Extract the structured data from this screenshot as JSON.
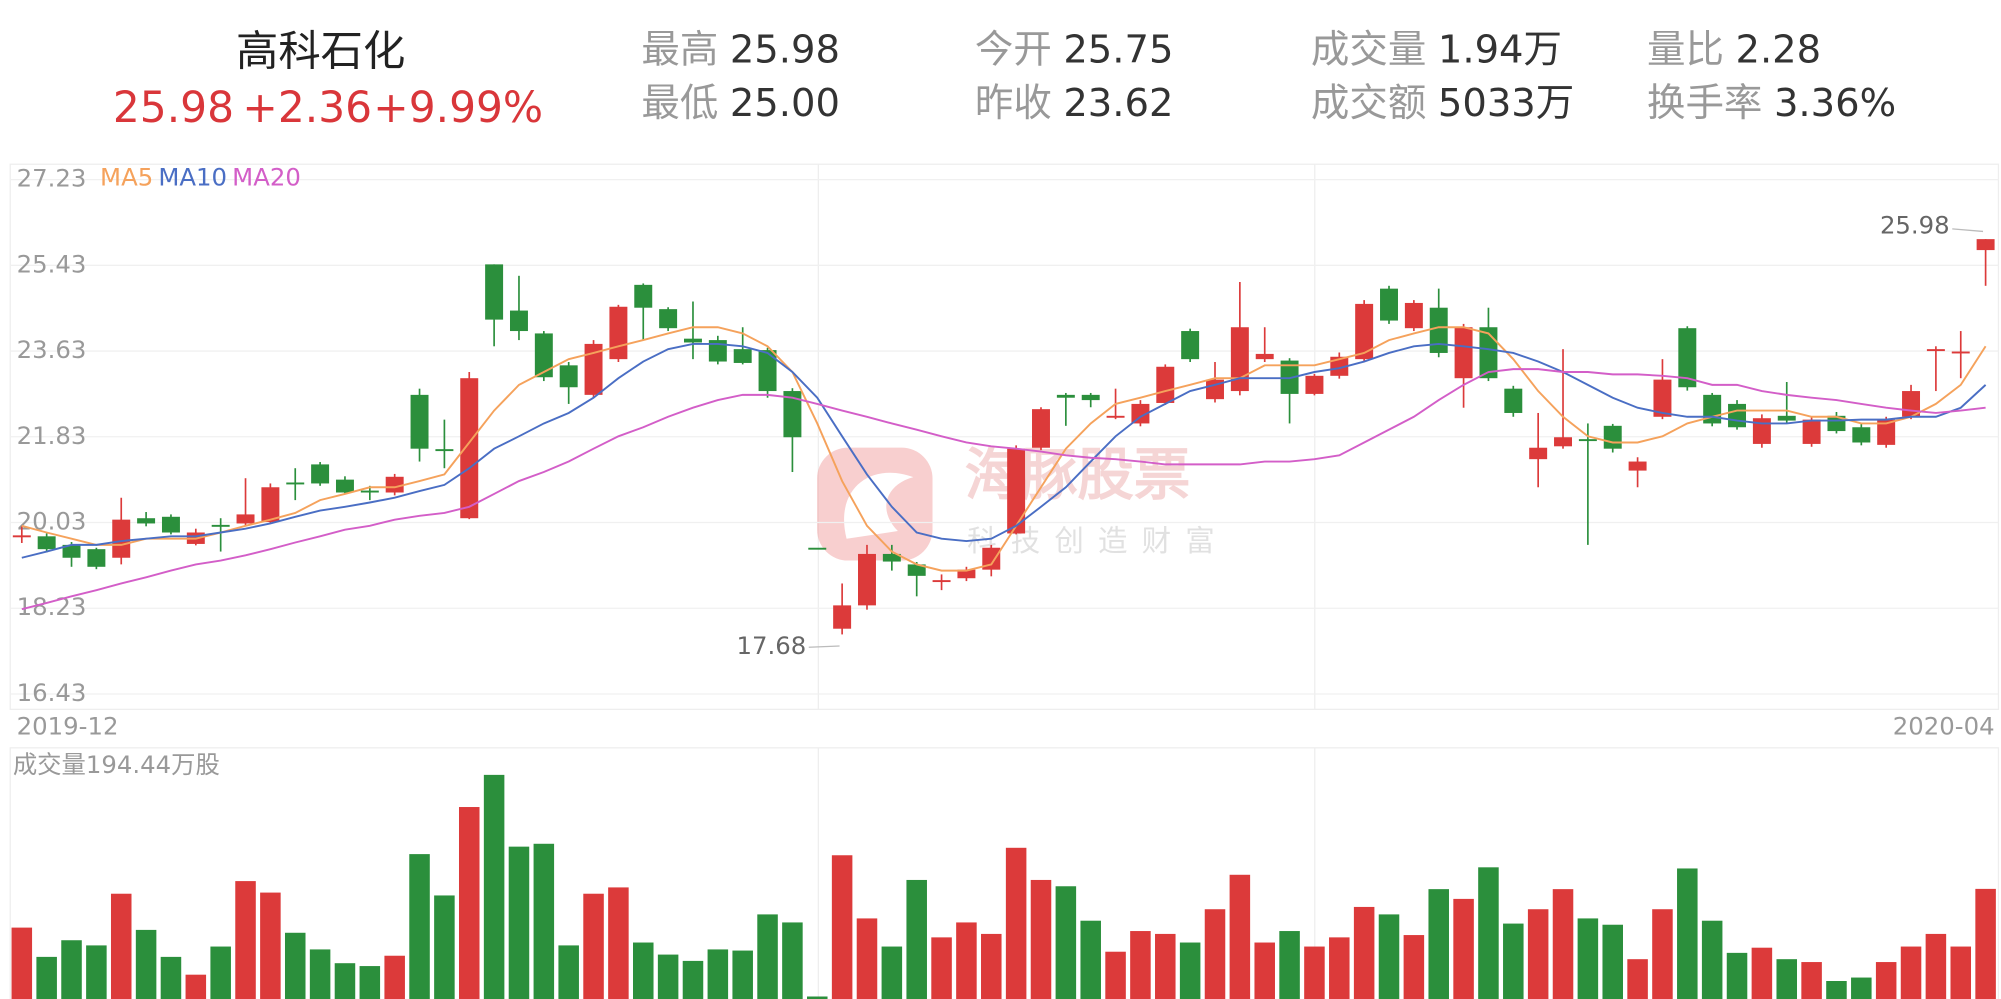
{
  "header": {
    "name": "高科石化",
    "price": "25.98",
    "change": "+2.36",
    "change_pct": "+9.99%",
    "stats": [
      {
        "label": "最高",
        "value": "25.98"
      },
      {
        "label": "今开",
        "value": "25.75"
      },
      {
        "label": "成交量",
        "value": "1.94万"
      },
      {
        "label": "量比",
        "value": "2.28"
      },
      {
        "label": "最低",
        "value": "25.00"
      },
      {
        "label": "昨收",
        "value": "23.62"
      },
      {
        "label": "成交额",
        "value": "5033万"
      },
      {
        "label": "换手率",
        "value": "3.36%"
      }
    ]
  },
  "chart_data": [
    {
      "type": "candlestick",
      "categories": [
        "2019-12",
        null,
        null,
        null,
        null,
        null,
        null,
        null,
        null,
        null,
        null,
        null,
        null,
        null,
        null,
        null,
        null,
        null,
        null,
        null,
        null,
        null,
        null,
        null,
        null,
        null,
        null,
        null,
        null,
        null,
        null,
        null,
        null,
        null,
        null,
        null,
        null,
        null,
        null,
        null,
        null,
        null,
        null,
        null,
        null,
        null,
        null,
        null,
        null,
        null,
        null,
        null,
        null,
        null,
        null,
        null,
        null,
        null,
        null,
        null,
        null,
        null,
        null,
        null,
        null,
        null,
        null,
        null,
        null,
        null,
        null,
        null,
        null,
        null,
        null,
        null,
        null,
        null,
        null,
        "2020-04"
      ],
      "open": [
        19.72,
        19.74,
        19.56,
        19.47,
        19.29,
        20.12,
        20.15,
        19.58,
        19.98,
        20.01,
        20.04,
        20.87,
        21.25,
        20.93,
        20.7,
        20.66,
        22.71,
        21.57,
        20.12,
        25.45,
        24.48,
        24.0,
        23.33,
        22.71,
        23.46,
        25.02,
        24.51,
        23.89,
        23.86,
        23.67,
        23.65,
        22.79,
        19.5,
        17.8,
        18.29,
        19.37,
        19.15,
        18.79,
        18.86,
        19.04,
        19.8,
        21.6,
        22.71,
        22.71,
        22.25,
        22.11,
        22.54,
        24.05,
        22.62,
        22.79,
        23.46,
        23.43,
        22.73,
        23.11,
        23.46,
        24.94,
        24.11,
        24.54,
        23.06,
        24.13,
        22.84,
        21.36,
        21.63,
        21.78,
        22.06,
        21.12,
        22.25,
        24.11,
        22.71,
        22.52,
        21.68,
        22.27,
        21.68,
        22.27,
        22.03,
        21.66,
        22.25,
        23.64,
        23.58,
        25.75
      ],
      "high": [
        19.95,
        19.8,
        19.62,
        19.5,
        20.55,
        20.25,
        20.2,
        19.9,
        20.12,
        20.96,
        20.85,
        21.17,
        21.3,
        21.0,
        20.8,
        21.05,
        22.84,
        22.19,
        23.19,
        25.45,
        25.21,
        24.05,
        23.4,
        23.86,
        24.6,
        25.05,
        24.55,
        24.67,
        23.95,
        24.13,
        23.7,
        22.85,
        19.5,
        18.75,
        19.56,
        19.56,
        19.2,
        18.94,
        19.1,
        19.56,
        21.65,
        22.45,
        22.75,
        22.75,
        22.84,
        22.6,
        23.35,
        24.1,
        23.4,
        25.08,
        24.13,
        23.48,
        23.15,
        23.6,
        24.7,
        25.0,
        24.7,
        24.94,
        24.2,
        24.54,
        22.9,
        22.33,
        23.67,
        22.11,
        22.1,
        21.4,
        23.46,
        24.15,
        22.75,
        22.6,
        22.3,
        22.98,
        22.25,
        22.35,
        22.1,
        22.25,
        22.92,
        23.73,
        24.05,
        25.98
      ],
      "low": [
        19.6,
        19.4,
        19.1,
        19.05,
        19.15,
        19.95,
        19.78,
        19.55,
        19.42,
        19.96,
        20.0,
        20.5,
        20.8,
        20.62,
        20.5,
        20.6,
        21.31,
        21.17,
        20.1,
        23.73,
        23.86,
        23.0,
        22.52,
        22.65,
        23.4,
        23.86,
        24.05,
        23.46,
        23.35,
        23.35,
        22.65,
        21.09,
        19.5,
        17.68,
        18.2,
        19.02,
        18.48,
        18.61,
        18.8,
        18.9,
        19.78,
        21.55,
        22.06,
        22.45,
        22.2,
        22.05,
        22.5,
        23.4,
        22.55,
        22.7,
        23.4,
        22.11,
        22.7,
        23.05,
        23.4,
        24.2,
        24.05,
        23.5,
        22.44,
        23.0,
        22.25,
        20.77,
        21.58,
        19.56,
        21.5,
        20.77,
        22.2,
        22.8,
        22.05,
        21.98,
        21.6,
        22.1,
        21.62,
        21.9,
        21.65,
        21.6,
        22.2,
        22.79,
        23.06,
        25.0
      ],
      "close": [
        19.76,
        19.47,
        19.29,
        19.1,
        20.09,
        20.01,
        19.82,
        19.82,
        19.94,
        20.2,
        20.77,
        20.83,
        20.85,
        20.66,
        20.68,
        20.99,
        21.58,
        21.54,
        23.06,
        24.29,
        24.05,
        23.08,
        22.87,
        23.78,
        24.56,
        24.54,
        24.11,
        23.81,
        23.41,
        23.38,
        22.79,
        21.82,
        19.5,
        18.29,
        19.37,
        19.21,
        18.91,
        18.82,
        19.04,
        19.5,
        21.58,
        22.41,
        22.65,
        22.6,
        22.27,
        22.52,
        23.3,
        23.46,
        23.03,
        24.13,
        23.57,
        22.73,
        23.11,
        23.51,
        24.62,
        24.27,
        24.64,
        23.59,
        24.13,
        23.06,
        22.33,
        21.6,
        21.82,
        21.74,
        21.58,
        21.31,
        23.03,
        22.87,
        22.11,
        22.03,
        22.22,
        22.17,
        22.19,
        21.95,
        21.71,
        22.19,
        22.79,
        23.67,
        23.62,
        25.98
      ],
      "up_color": "#dc3a3a",
      "down_color": "#2b8f3c",
      "series": [
        {
          "name": "MA5",
          "color": "#f5a25c",
          "values": [
            19.96,
            19.82,
            19.69,
            19.56,
            19.56,
            19.69,
            19.69,
            19.69,
            19.82,
            19.96,
            20.09,
            20.23,
            20.5,
            20.63,
            20.77,
            20.77,
            20.9,
            21.04,
            21.71,
            22.38,
            22.92,
            23.19,
            23.46,
            23.59,
            23.73,
            23.86,
            24.0,
            24.13,
            24.13,
            24.0,
            23.73,
            23.19,
            22.11,
            20.9,
            19.96,
            19.42,
            19.15,
            19.02,
            19.02,
            19.15,
            19.96,
            20.77,
            21.58,
            22.11,
            22.52,
            22.65,
            22.79,
            22.92,
            23.06,
            23.06,
            23.33,
            23.33,
            23.33,
            23.46,
            23.59,
            23.86,
            24.0,
            24.13,
            24.13,
            24.0,
            23.46,
            22.79,
            22.25,
            21.84,
            21.71,
            21.71,
            21.84,
            22.11,
            22.25,
            22.38,
            22.38,
            22.38,
            22.25,
            22.25,
            22.11,
            22.11,
            22.25,
            22.52,
            22.92,
            23.73
          ]
        },
        {
          "name": "MA10",
          "color": "#4a6ec4",
          "values": [
            19.29,
            19.42,
            19.56,
            19.56,
            19.64,
            19.69,
            19.74,
            19.74,
            19.82,
            19.9,
            20.01,
            20.15,
            20.28,
            20.36,
            20.45,
            20.55,
            20.69,
            20.82,
            21.17,
            21.58,
            21.84,
            22.11,
            22.33,
            22.65,
            23.06,
            23.41,
            23.67,
            23.78,
            23.78,
            23.73,
            23.59,
            23.19,
            22.65,
            21.84,
            21.04,
            20.36,
            19.82,
            19.69,
            19.64,
            19.69,
            19.96,
            20.36,
            20.77,
            21.31,
            21.84,
            22.25,
            22.52,
            22.79,
            22.92,
            23.06,
            23.06,
            23.06,
            23.19,
            23.27,
            23.41,
            23.59,
            23.73,
            23.78,
            23.73,
            23.67,
            23.59,
            23.41,
            23.19,
            22.92,
            22.65,
            22.44,
            22.33,
            22.25,
            22.25,
            22.17,
            22.11,
            22.11,
            22.17,
            22.17,
            22.19,
            22.19,
            22.25,
            22.25,
            22.44,
            22.92
          ]
        },
        {
          "name": "MA20",
          "color": "#d35ec8",
          "values": [
            18.21,
            18.34,
            18.48,
            18.61,
            18.75,
            18.88,
            19.02,
            19.15,
            19.23,
            19.34,
            19.47,
            19.61,
            19.74,
            19.88,
            19.96,
            20.09,
            20.17,
            20.23,
            20.36,
            20.63,
            20.9,
            21.09,
            21.31,
            21.58,
            21.84,
            22.03,
            22.25,
            22.44,
            22.6,
            22.71,
            22.71,
            22.65,
            22.52,
            22.38,
            22.25,
            22.11,
            21.98,
            21.84,
            21.71,
            21.63,
            21.58,
            21.52,
            21.44,
            21.39,
            21.36,
            21.31,
            21.25,
            21.25,
            21.25,
            21.25,
            21.31,
            21.31,
            21.36,
            21.44,
            21.71,
            21.98,
            22.25,
            22.6,
            22.92,
            23.19,
            23.25,
            23.25,
            23.19,
            23.19,
            23.14,
            23.14,
            23.11,
            23.06,
            22.92,
            22.92,
            22.79,
            22.71,
            22.65,
            22.6,
            22.52,
            22.44,
            22.38,
            22.33,
            22.38,
            22.44
          ]
        }
      ],
      "ylim": [
        16.43,
        27.23
      ],
      "yticks": [
        27.23,
        25.43,
        23.63,
        21.83,
        20.03,
        18.23,
        16.43
      ],
      "grid": true,
      "max_label": 25.98,
      "min_label": 17.68,
      "watermark": [
        "海豚股票",
        "科技创造财富"
      ]
    },
    {
      "type": "bar",
      "title": "成交量194.44万股",
      "values": [
        127,
        76,
        105,
        96,
        186,
        123,
        76,
        45,
        94,
        208,
        188,
        118,
        89,
        65,
        60,
        78,
        255,
        183,
        337,
        393,
        268,
        273,
        96,
        186,
        197,
        101,
        80,
        69,
        89,
        87,
        150,
        136,
        7,
        253,
        143,
        94,
        210,
        110,
        136,
        116,
        266,
        210,
        199,
        139,
        85,
        121,
        116,
        101,
        159,
        219,
        101,
        121,
        94,
        110,
        163,
        150,
        114,
        194,
        177,
        232,
        134,
        159,
        194,
        143,
        132,
        72,
        159,
        230,
        139,
        83,
        92,
        72,
        67,
        34,
        40,
        67,
        94,
        116,
        94,
        194.44
      ],
      "ylim": [
        0,
        420
      ]
    }
  ]
}
